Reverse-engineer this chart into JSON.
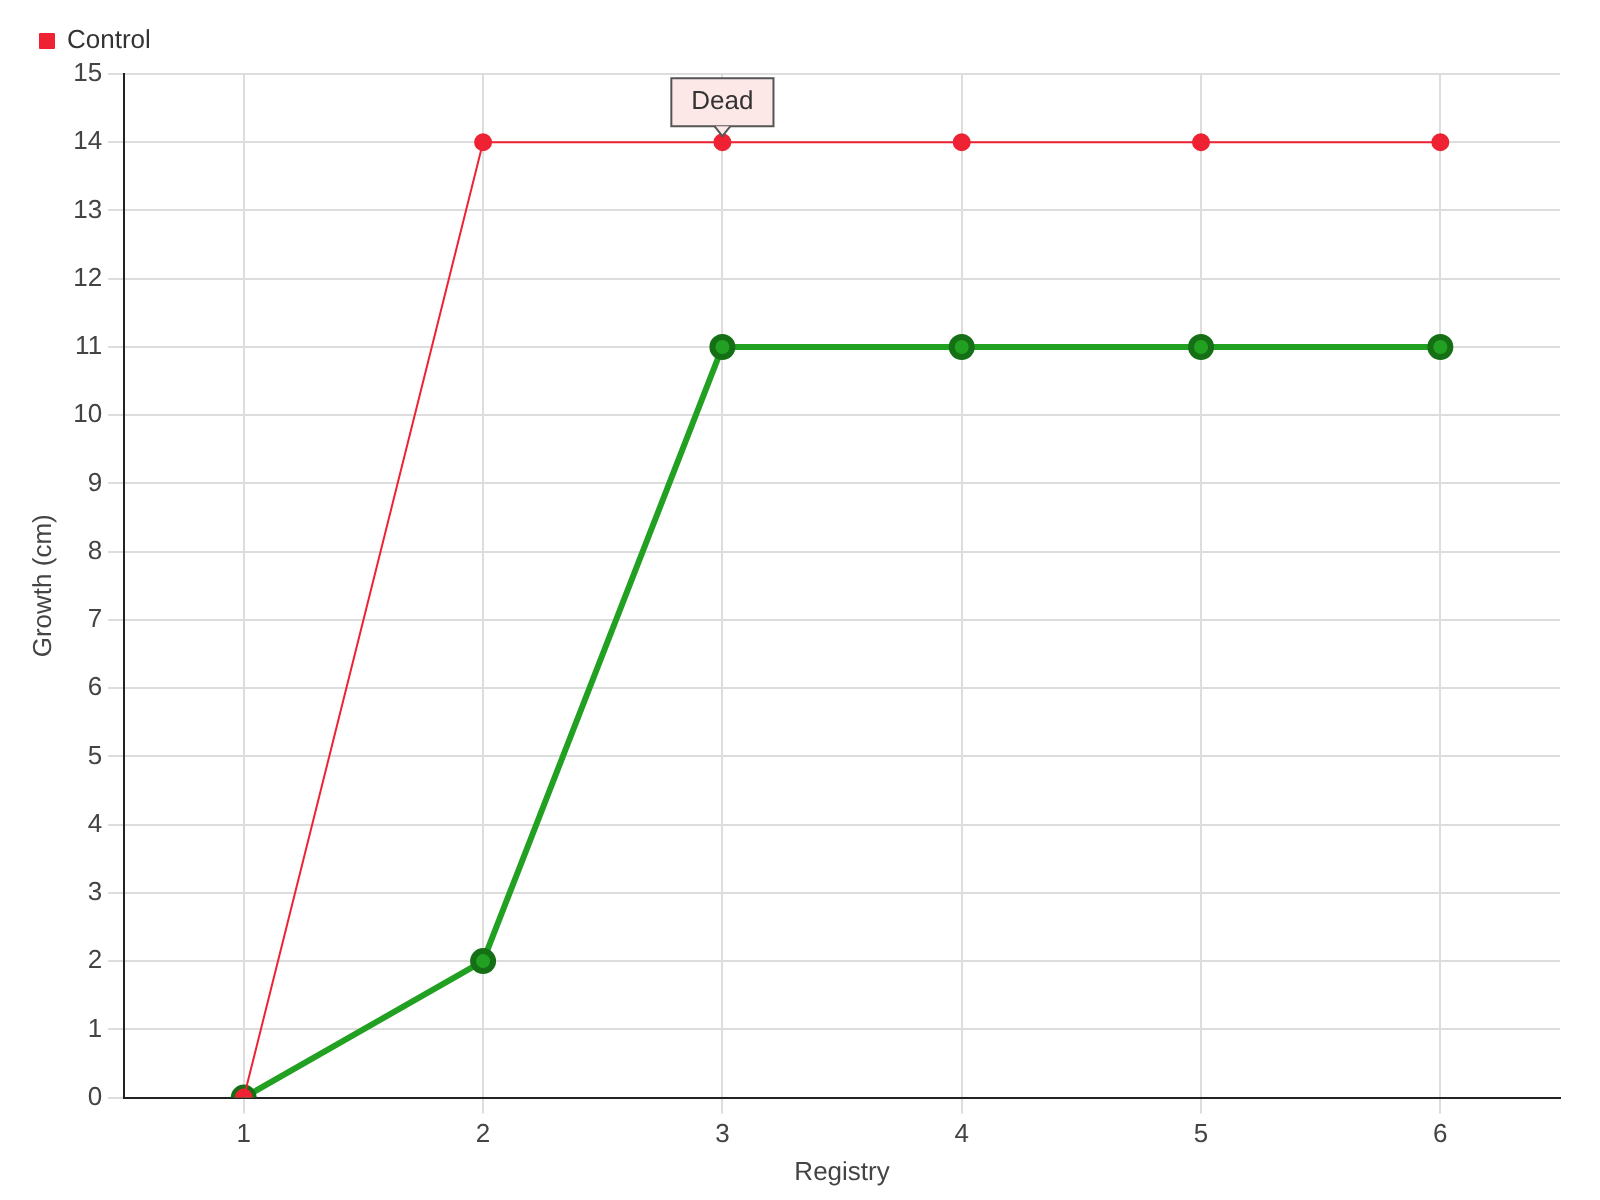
{
  "chart_data": {
    "type": "line",
    "xlabel": "Registry",
    "ylabel": "Growth (cm)",
    "categories": [
      "1",
      "2",
      "3",
      "4",
      "5",
      "6"
    ],
    "series": [
      {
        "color": "#22a022",
        "values": [
          0,
          2,
          11,
          11,
          11,
          11
        ]
      },
      {
        "name": "Control",
        "color": "#ee2233",
        "values": [
          0,
          14,
          14,
          14,
          14,
          14
        ]
      }
    ],
    "ylim": [
      0,
      15
    ],
    "yticks": [
      0,
      1,
      2,
      3,
      4,
      5,
      6,
      7,
      8,
      9,
      10,
      11,
      12,
      13,
      14,
      15
    ],
    "grid": true,
    "legend": "top left",
    "marker": "circle",
    "annotations": [
      {
        "text": "Dead",
        "x": "3",
        "y": 14
      }
    ]
  }
}
